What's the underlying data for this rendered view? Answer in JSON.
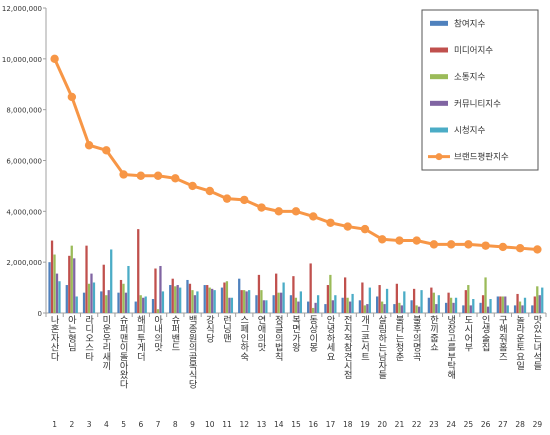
{
  "chart_data": {
    "type": "bar",
    "title": "",
    "xlabel": "",
    "ylabel": "",
    "ylim": [
      0,
      12000000
    ],
    "yticks": [
      0,
      2000000,
      4000000,
      6000000,
      8000000,
      10000000,
      12000000
    ],
    "ytick_labels": [
      "0",
      "2,000,000",
      "4,000,000",
      "6,000,000",
      "8,000,000",
      "10,000,000",
      "12,000,000"
    ],
    "grid": false,
    "legend_position": "top-right",
    "categories": [
      "나혼자산다",
      "아는형님",
      "라디오스타",
      "미운우리새끼",
      "슈퍼맨이돌아왔다",
      "해피투게더",
      "아내의맛",
      "슈퍼밴드",
      "백종원의골목식당",
      "강식당",
      "런닝맨",
      "스페인하숙",
      "연애의맛",
      "정글의법칙",
      "복면가왕",
      "동상이몽",
      "안녕하세요",
      "전지적참견시점",
      "개그콘서트",
      "살림하는남자들",
      "불타는청춘",
      "불후의명곡",
      "한끼줍쇼",
      "냉장고를부탁해",
      "도시어부",
      "인생술집",
      "구해줘홈즈",
      "놀라운토요일",
      "맛있는녀석들"
    ],
    "ranks": [
      "1",
      "2",
      "3",
      "4",
      "5",
      "6",
      "7",
      "8",
      "9",
      "10",
      "11",
      "12",
      "13",
      "14",
      "15",
      "16",
      "17",
      "18",
      "19",
      "20",
      "21",
      "22",
      "23",
      "24",
      "25",
      "26",
      "27",
      "28",
      "29"
    ],
    "series": [
      {
        "name": "참여지수",
        "color": "#4f81bd",
        "values": [
          2000000,
          1100000,
          800000,
          850000,
          800000,
          450000,
          550000,
          1100000,
          1300000,
          1100000,
          1000000,
          1350000,
          700000,
          700000,
          700000,
          450000,
          350000,
          600000,
          500000,
          650000,
          350000,
          500000,
          600000,
          400000,
          300000,
          400000,
          650000,
          300000,
          300000
        ]
      },
      {
        "name": "미디어지수",
        "color": "#c0504d",
        "values": [
          2850000,
          2250000,
          2650000,
          1900000,
          1300000,
          3300000,
          1750000,
          1350000,
          1150000,
          1100000,
          1200000,
          900000,
          1500000,
          1550000,
          1450000,
          1950000,
          1100000,
          1400000,
          1200000,
          1100000,
          1150000,
          950000,
          1000000,
          800000,
          900000,
          700000,
          650000,
          750000,
          650000
        ]
      },
      {
        "name": "소통지수",
        "color": "#9bbb59",
        "values": [
          2300000,
          2650000,
          1150000,
          700000,
          1150000,
          700000,
          150000,
          1050000,
          900000,
          1000000,
          1250000,
          900000,
          900000,
          800000,
          600000,
          200000,
          1500000,
          600000,
          300000,
          450000,
          400000,
          300000,
          800000,
          600000,
          1100000,
          1400000,
          650000,
          450000,
          1050000
        ]
      },
      {
        "name": "커뮤니티지수",
        "color": "#8064a2",
        "values": [
          1550000,
          2150000,
          1550000,
          900000,
          800000,
          600000,
          1850000,
          1100000,
          700000,
          950000,
          600000,
          850000,
          500000,
          800000,
          450000,
          400000,
          500000,
          450000,
          350000,
          350000,
          300000,
          250000,
          350000,
          400000,
          300000,
          250000,
          650000,
          300000,
          700000
        ]
      },
      {
        "name": "시청지수",
        "color": "#4bacc6",
        "values": [
          1250000,
          650000,
          1200000,
          2500000,
          1850000,
          650000,
          850000,
          1000000,
          850000,
          900000,
          600000,
          900000,
          500000,
          1200000,
          850000,
          700000,
          700000,
          750000,
          1000000,
          950000,
          850000,
          900000,
          700000,
          600000,
          550000,
          550000,
          300000,
          600000,
          1000000
        ]
      },
      {
        "name": "브랜드평판지수",
        "color": "#f79646",
        "type": "line",
        "values": [
          10000000,
          8500000,
          6600000,
          6400000,
          5450000,
          5400000,
          5400000,
          5300000,
          5000000,
          4800000,
          4500000,
          4450000,
          4150000,
          4000000,
          4000000,
          3800000,
          3550000,
          3400000,
          3300000,
          2900000,
          2850000,
          2850000,
          2700000,
          2700000,
          2700000,
          2650000,
          2600000,
          2550000,
          2500000
        ]
      }
    ]
  }
}
